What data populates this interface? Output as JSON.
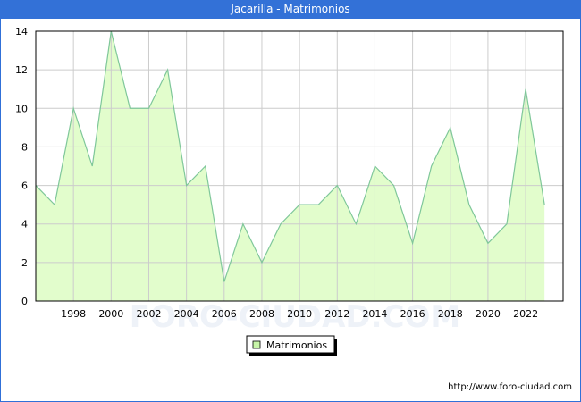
{
  "title": "Jacarilla - Matrimonios",
  "source": "http://www.foro-ciudad.com",
  "watermark": "FORO-CIUDAD.COM",
  "colors": {
    "titlebar": "#3371d7",
    "fill": "#e2fdcc",
    "line": "#7fc79a",
    "grid": "#cccccc"
  },
  "chart_data": {
    "type": "area",
    "title": "Jacarilla - Matrimonios",
    "xlabel": "",
    "ylabel": "",
    "x": [
      1996,
      1997,
      1998,
      1999,
      2000,
      2001,
      2002,
      2003,
      2004,
      2005,
      2006,
      2007,
      2008,
      2009,
      2010,
      2011,
      2012,
      2013,
      2014,
      2015,
      2016,
      2017,
      2018,
      2019,
      2020,
      2021,
      2022,
      2023
    ],
    "series": [
      {
        "name": "Matrimonios",
        "values": [
          6,
          5,
          10,
          7,
          14,
          10,
          10,
          12,
          6,
          7,
          1,
          4,
          2,
          4,
          5,
          5,
          6,
          4,
          7,
          6,
          3,
          7,
          9,
          5,
          3,
          4,
          11,
          5
        ]
      }
    ],
    "xticks": [
      "1998",
      "2000",
      "2002",
      "2004",
      "2006",
      "2008",
      "2010",
      "2012",
      "2014",
      "2016",
      "2018",
      "2020",
      "2022"
    ],
    "yticks": [
      "0",
      "2",
      "4",
      "6",
      "8",
      "10",
      "12",
      "14"
    ],
    "ylim": [
      0,
      14
    ],
    "grid": true,
    "legend": {
      "position": "bottom-center",
      "entries": [
        "Matrimonios"
      ]
    }
  }
}
